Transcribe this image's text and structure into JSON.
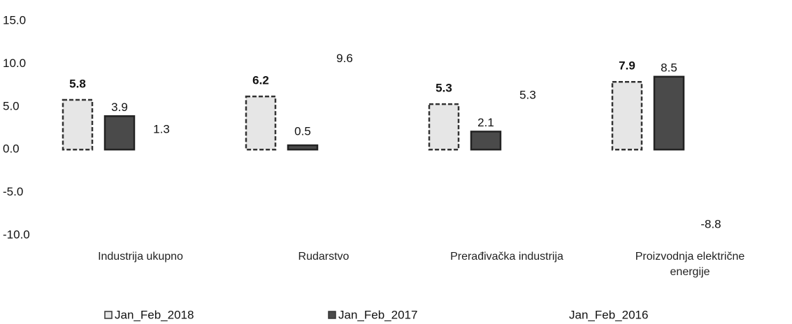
{
  "chart_data": {
    "type": "bar",
    "categories": [
      "Industrija ukupno",
      "Rudarstvo",
      "Prerađivačka industrija",
      "Proizvodnja električne energije"
    ],
    "series": [
      {
        "name": "Jan_Feb_2018",
        "color": "#e6e6e6",
        "values": [
          5.8,
          6.2,
          5.3,
          7.9
        ]
      },
      {
        "name": "Jan_Feb_2017",
        "color": "#4a4a4a",
        "values": [
          3.9,
          0.5,
          2.1,
          8.5
        ]
      },
      {
        "name": "Jan_Feb_2016",
        "color": "#ffffff",
        "values": [
          1.3,
          9.6,
          5.3,
          -8.8
        ]
      }
    ],
    "ylim": [
      -10,
      15
    ],
    "yticks": [
      {
        "value": -10,
        "label": "-10.0"
      },
      {
        "value": -5,
        "label": "-5.0"
      },
      {
        "value": 0,
        "label": "0.0"
      },
      {
        "value": 5,
        "label": "5.0"
      },
      {
        "value": 10,
        "label": "10.0"
      },
      {
        "value": 15,
        "label": "15.0"
      }
    ],
    "grid": false,
    "legend": "bottom"
  }
}
